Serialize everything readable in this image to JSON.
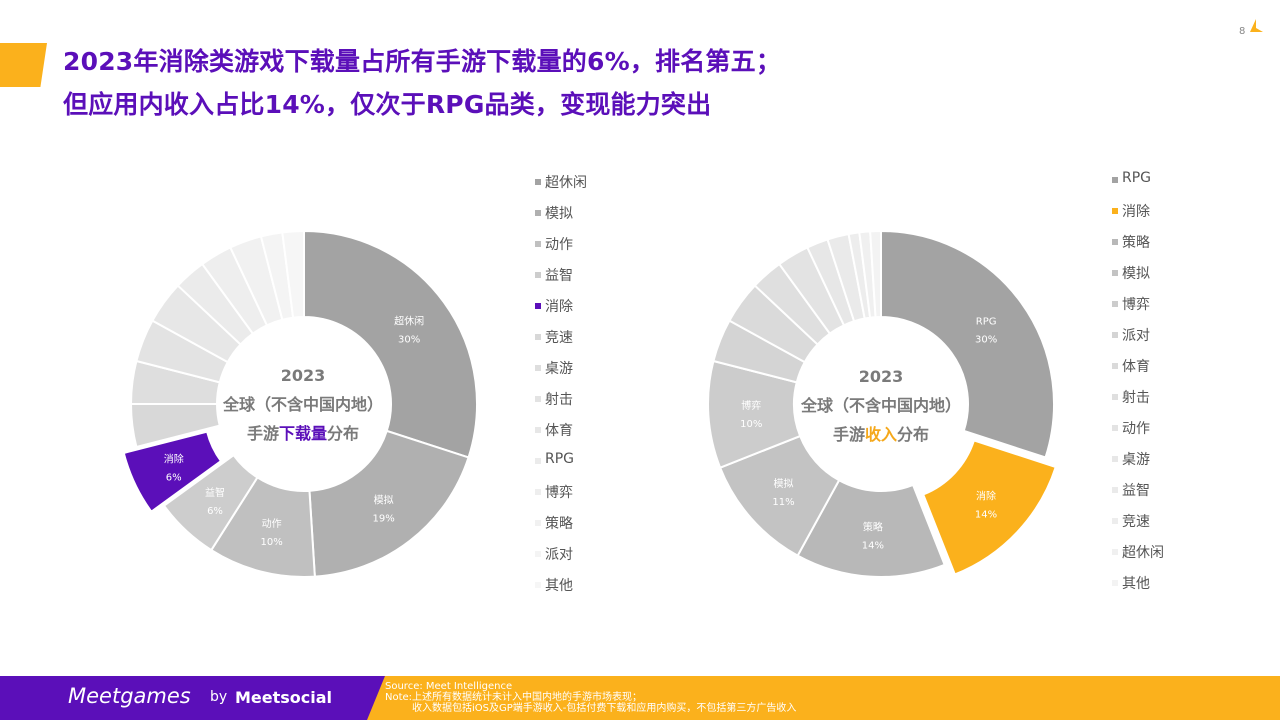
{
  "page": {
    "title_line1": "2023年消除类游戏下载量占所有手游下载量的6%，排名第五；",
    "title_line2": "但应用内收入占比14%，仅次于RPG品类，变现能力突出",
    "page_number": "8"
  },
  "center_left": {
    "year": "2023",
    "region": "全球（不含中国内地）",
    "pre": "手游",
    "highlight": "下载量",
    "post": "分布"
  },
  "center_right": {
    "year": "2023",
    "region": "全球（不含中国内地）",
    "pre": "手游",
    "highlight": "收入",
    "post": "分布"
  },
  "colors": {
    "purple": "#5b0fb9",
    "gold": "#fbb11c"
  },
  "chart_data": [
    {
      "type": "pie",
      "variant": "donut",
      "categories": [
        "超休闲",
        "模拟",
        "动作",
        "益智",
        "消除",
        "竞速",
        "桌游",
        "射击",
        "体育",
        "RPG",
        "博弈",
        "策略",
        "派对",
        "其他"
      ],
      "values": [
        30,
        19,
        10,
        6,
        6,
        4,
        4,
        4,
        4,
        3,
        3,
        3,
        2,
        2
      ],
      "data_labels": [
        {
          "name": "超休闲",
          "value": "30%"
        },
        {
          "name": "模拟",
          "value": "19%"
        },
        {
          "name": "动作",
          "value": "10%"
        },
        {
          "name": "益智",
          "value": "6%"
        },
        {
          "name": "消除",
          "value": "6%"
        }
      ],
      "highlight": "消除",
      "highlight_color": "#5b0fb9",
      "legend_position": "right",
      "colors": [
        "#a3a3a3",
        "#b0b0b0",
        "#c0c0c0",
        "#cdcdcd",
        "#5b0fb9",
        "#d8d8d8",
        "#dedede",
        "#e3e3e3",
        "#e7e7e7",
        "#ebebeb",
        "#eeeeee",
        "#f1f1f1",
        "#f4f4f4",
        "#f6f6f6"
      ]
    },
    {
      "type": "pie",
      "variant": "donut",
      "categories": [
        "RPG",
        "消除",
        "策略",
        "模拟",
        "博弈",
        "派对",
        "体育",
        "射击",
        "动作",
        "桌游",
        "益智",
        "竞速",
        "超休闲",
        "其他"
      ],
      "values": [
        30,
        14,
        14,
        11,
        10,
        4,
        4,
        3,
        3,
        2,
        2,
        1,
        1,
        1
      ],
      "data_labels": [
        {
          "name": "RPG",
          "value": "30%"
        },
        {
          "name": "消除",
          "value": "14%"
        },
        {
          "name": "策略",
          "value": "14%"
        },
        {
          "name": "模拟",
          "value": "11%"
        },
        {
          "name": "博弈",
          "value": "10%"
        }
      ],
      "highlight": "消除",
      "highlight_color": "#fbb11c",
      "legend_position": "right",
      "colors": [
        "#a3a3a3",
        "#fbb11c",
        "#b8b8b8",
        "#c3c3c3",
        "#cccccc",
        "#d4d4d4",
        "#dadada",
        "#dfdfdf",
        "#e3e3e3",
        "#e7e7e7",
        "#eaeaea",
        "#ededed",
        "#f0f0f0",
        "#f3f3f3"
      ]
    }
  ],
  "footer": {
    "logo_meet": "Meetgames",
    "logo_by": "by",
    "logo_social": "Meetsocial",
    "source": "Source: Meet Intelligence",
    "note1": "Note:上述所有数据统计未计入中国内地的手游市场表现；",
    "note2": "收入数据包括iOS及GP端手游收入-包括付费下载和应用内购买，不包括第三方广告收入"
  }
}
